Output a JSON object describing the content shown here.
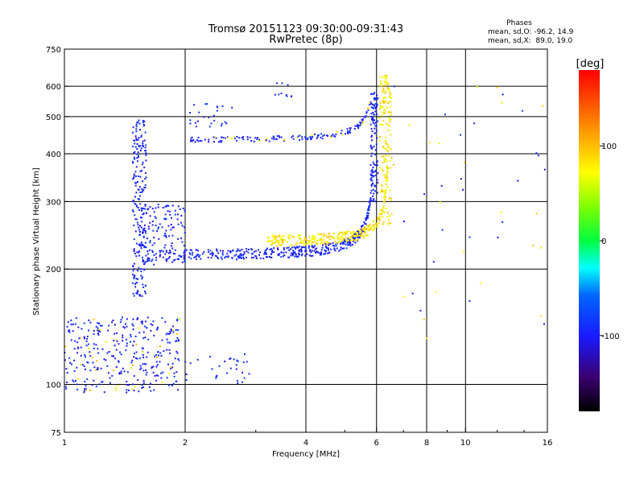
{
  "chart_data": {
    "type": "scatter",
    "title": "Tromsø 20151123 09:30:00-09:31:43",
    "subtitle": "RwPretec (8p)",
    "xlabel": "Frequency [MHz]",
    "ylabel": "Stationary phase Virtual Height [km]",
    "x_scale": "log",
    "y_scale": "log",
    "xlim": [
      1,
      16
    ],
    "ylim": [
      75,
      750
    ],
    "x_ticks": [
      1,
      2,
      4,
      6,
      8,
      10,
      16
    ],
    "x_tick_labels": [
      "1",
      "2",
      "4",
      "6",
      "8",
      "10",
      "16"
    ],
    "y_ticks": [
      75,
      100,
      200,
      300,
      400,
      500,
      600,
      750
    ],
    "y_tick_labels": [
      "75",
      "100",
      "200",
      "300",
      "400",
      "500",
      "600",
      "750"
    ],
    "x_grid": [
      2,
      4,
      6,
      8,
      10
    ],
    "y_grid": [
      100,
      200,
      300,
      400,
      500,
      600
    ],
    "grid": true,
    "phase_header": "Phases",
    "phase_stats": [
      "mean, sd,O: -96.2, 14.9",
      "mean, sd,X:  89.0, 19.0"
    ],
    "colorbar": {
      "label": "[deg]",
      "range": [
        -180,
        180
      ],
      "ticks": [
        100,
        0,
        -100
      ],
      "tick_labels": [
        "100",
        "0",
        "-100"
      ]
    },
    "series_summary": [
      {
        "trace": "E/Es region",
        "f_range": [
          1.0,
          2.9
        ],
        "h_range": [
          85,
          160
        ],
        "phase": -100
      },
      {
        "trace": "F O-mode trace",
        "f_range": [
          1.5,
          6.0
        ],
        "h_range": [
          210,
          500
        ],
        "phase": -96
      },
      {
        "trace": "F X-mode trace",
        "f_range": [
          3.2,
          6.5
        ],
        "h_range": [
          230,
          650
        ],
        "phase": 89
      },
      {
        "trace": "Multi-hop O-mode trace",
        "f_range": [
          2.05,
          5.8
        ],
        "h_range": [
          425,
          620
        ],
        "phase": -96
      }
    ]
  }
}
